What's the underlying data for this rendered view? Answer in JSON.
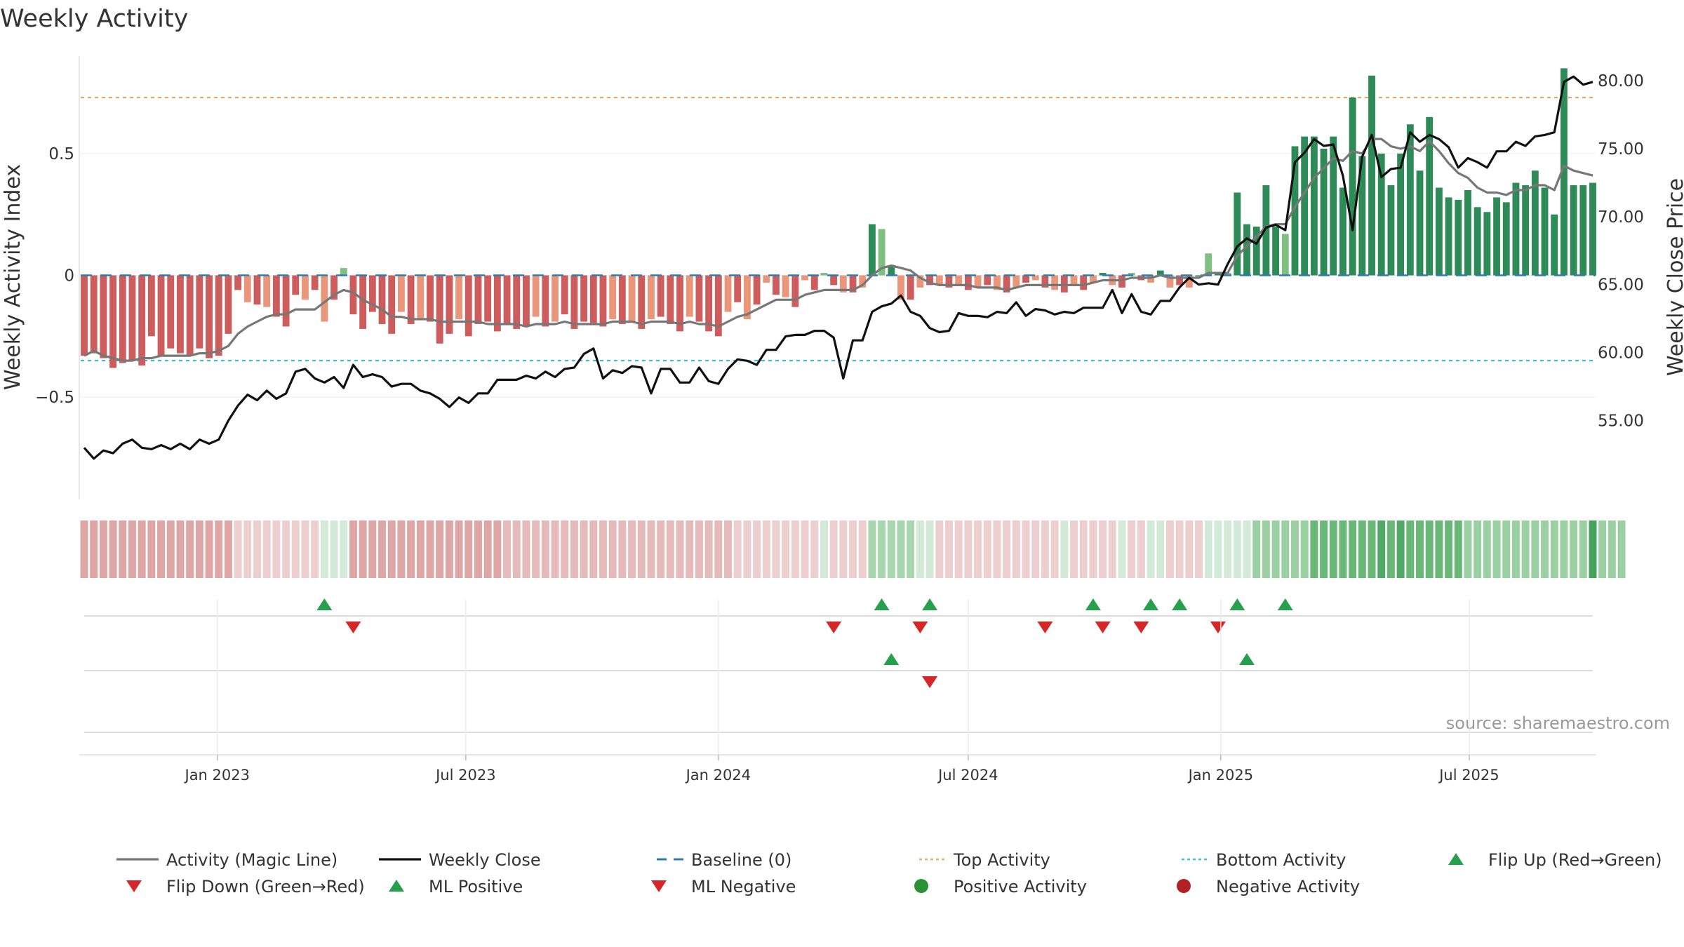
{
  "chart_data": {
    "type": "bar",
    "title": "Weekly Activity",
    "ylabel_left": "Weekly Activity Index",
    "ylabel_right": "Weekly Close Price",
    "source": "source: sharemaestro.com",
    "x_start_week": "2022-09-26",
    "x_ticks": [
      {
        "label": "Jan 2023",
        "date": "2023-01-01"
      },
      {
        "label": "Jul 2023",
        "date": "2023-07-01"
      },
      {
        "label": "Jan 2024",
        "date": "2024-01-01"
      },
      {
        "label": "Jul 2024",
        "date": "2024-07-01"
      },
      {
        "label": "Jan 2025",
        "date": "2025-01-01"
      },
      {
        "label": "Jul 2025",
        "date": "2025-07-01"
      }
    ],
    "y_left": {
      "ticks": [
        0.5,
        0,
        -0.5
      ],
      "tick_labels": [
        "0.5",
        "0",
        "−0.5"
      ],
      "range": [
        -0.92,
        0.9
      ]
    },
    "y_right": {
      "ticks": [
        80,
        75,
        70,
        65,
        60,
        55
      ],
      "tick_labels": [
        "80.00",
        "75.00",
        "70.00",
        "65.00",
        "60.00",
        "55.00"
      ],
      "range": [
        49.2,
        81.8
      ]
    },
    "thresholds": {
      "top": 0.73,
      "bottom": -0.35,
      "baseline": 0
    },
    "activity": [
      -0.33,
      -0.32,
      -0.34,
      -0.38,
      -0.36,
      -0.35,
      -0.37,
      -0.25,
      -0.33,
      -0.3,
      -0.32,
      -0.33,
      -0.3,
      -0.34,
      -0.33,
      -0.24,
      -0.06,
      -0.11,
      -0.12,
      -0.13,
      -0.17,
      -0.21,
      -0.08,
      -0.1,
      -0.06,
      -0.19,
      -0.1,
      0.03,
      -0.16,
      -0.22,
      -0.15,
      -0.2,
      -0.24,
      -0.15,
      -0.2,
      -0.18,
      -0.19,
      -0.28,
      -0.24,
      -0.18,
      -0.25,
      -0.2,
      -0.19,
      -0.23,
      -0.2,
      -0.22,
      -0.21,
      -0.17,
      -0.21,
      -0.19,
      -0.16,
      -0.22,
      -0.19,
      -0.2,
      -0.21,
      -0.18,
      -0.2,
      -0.19,
      -0.22,
      -0.18,
      -0.17,
      -0.2,
      -0.23,
      -0.17,
      -0.19,
      -0.23,
      -0.25,
      -0.15,
      -0.11,
      -0.18,
      -0.12,
      -0.03,
      -0.08,
      -0.09,
      -0.13,
      -0.02,
      -0.06,
      0.01,
      -0.04,
      -0.07,
      -0.07,
      -0.05,
      0.21,
      0.19,
      0.04,
      -0.1,
      -0.1,
      -0.05,
      -0.04,
      -0.04,
      -0.05,
      -0.04,
      -0.06,
      -0.05,
      -0.04,
      -0.06,
      -0.07,
      -0.05,
      -0.03,
      -0.02,
      -0.05,
      -0.06,
      -0.07,
      -0.04,
      -0.06,
      -0.03,
      0.01,
      -0.04,
      -0.05,
      0.01,
      -0.02,
      -0.03,
      0.02,
      -0.05,
      -0.04,
      -0.05,
      0.0,
      0.09,
      0.01,
      0.01,
      0.34,
      0.21,
      0.2,
      0.37,
      0.2,
      0.17,
      0.53,
      0.57,
      0.57,
      0.52,
      0.57,
      0.36,
      0.73,
      0.49,
      0.82,
      0.5,
      0.37,
      0.5,
      0.62,
      0.43,
      0.65,
      0.36,
      0.32,
      0.31,
      0.35,
      0.28,
      0.26,
      0.32,
      0.3,
      0.38,
      0.37,
      0.43,
      0.36,
      0.25,
      0.85,
      0.37,
      0.37,
      0.38
    ],
    "magic_line": [
      -0.33,
      -0.31,
      -0.33,
      -0.34,
      -0.35,
      -0.35,
      -0.34,
      -0.34,
      -0.33,
      -0.33,
      -0.33,
      -0.33,
      -0.32,
      -0.32,
      -0.31,
      -0.29,
      -0.24,
      -0.21,
      -0.19,
      -0.17,
      -0.16,
      -0.16,
      -0.14,
      -0.14,
      -0.14,
      -0.11,
      -0.08,
      -0.06,
      -0.07,
      -0.1,
      -0.12,
      -0.14,
      -0.17,
      -0.17,
      -0.18,
      -0.18,
      -0.18,
      -0.19,
      -0.19,
      -0.19,
      -0.19,
      -0.19,
      -0.2,
      -0.2,
      -0.2,
      -0.2,
      -0.21,
      -0.2,
      -0.2,
      -0.2,
      -0.19,
      -0.2,
      -0.2,
      -0.2,
      -0.2,
      -0.19,
      -0.19,
      -0.19,
      -0.2,
      -0.19,
      -0.19,
      -0.19,
      -0.2,
      -0.19,
      -0.2,
      -0.2,
      -0.21,
      -0.19,
      -0.17,
      -0.16,
      -0.14,
      -0.12,
      -0.1,
      -0.1,
      -0.1,
      -0.08,
      -0.07,
      -0.06,
      -0.06,
      -0.06,
      -0.06,
      -0.04,
      0.0,
      0.03,
      0.04,
      0.03,
      0.02,
      -0.01,
      -0.03,
      -0.04,
      -0.04,
      -0.04,
      -0.04,
      -0.05,
      -0.05,
      -0.05,
      -0.06,
      -0.05,
      -0.04,
      -0.04,
      -0.04,
      -0.04,
      -0.04,
      -0.04,
      -0.04,
      -0.03,
      -0.02,
      -0.02,
      -0.02,
      -0.01,
      -0.01,
      -0.01,
      0.0,
      -0.01,
      -0.01,
      -0.01,
      -0.01,
      0.01,
      0.01,
      0.01,
      0.08,
      0.12,
      0.16,
      0.2,
      0.21,
      0.21,
      0.28,
      0.34,
      0.4,
      0.44,
      0.48,
      0.47,
      0.51,
      0.5,
      0.56,
      0.56,
      0.53,
      0.52,
      0.53,
      0.51,
      0.55,
      0.51,
      0.46,
      0.42,
      0.4,
      0.36,
      0.34,
      0.34,
      0.33,
      0.35,
      0.35,
      0.37,
      0.37,
      0.35,
      0.45,
      0.43,
      0.42,
      0.41
    ],
    "close": [
      53.0,
      52.2,
      52.8,
      52.6,
      53.3,
      53.6,
      53.0,
      52.9,
      53.2,
      52.9,
      53.3,
      52.9,
      53.6,
      53.3,
      53.6,
      55.0,
      56.1,
      56.9,
      56.5,
      57.2,
      56.6,
      57.0,
      58.6,
      58.8,
      58.1,
      57.8,
      58.2,
      57.4,
      59.1,
      58.2,
      58.4,
      58.2,
      57.5,
      57.7,
      57.7,
      57.2,
      57.0,
      56.6,
      56.0,
      56.7,
      56.3,
      57.0,
      57.0,
      58.0,
      58.0,
      58.0,
      58.3,
      58.1,
      58.6,
      58.2,
      58.8,
      58.9,
      59.9,
      60.3,
      58.1,
      58.7,
      58.5,
      59.0,
      58.9,
      57.0,
      58.8,
      58.8,
      57.8,
      57.8,
      58.9,
      57.9,
      57.7,
      58.8,
      59.5,
      59.4,
      59.1,
      60.2,
      60.2,
      61.2,
      61.3,
      61.3,
      61.6,
      61.6,
      61.1,
      58.1,
      60.9,
      60.9,
      63.0,
      63.4,
      63.6,
      64.2,
      63.0,
      62.7,
      61.8,
      61.5,
      61.6,
      62.9,
      62.7,
      62.7,
      62.6,
      63.0,
      62.9,
      63.7,
      62.7,
      63.2,
      63.1,
      62.8,
      63.0,
      62.9,
      63.3,
      63.3,
      63.3,
      64.6,
      62.9,
      64.3,
      63.0,
      62.8,
      63.8,
      63.8,
      64.8,
      65.5,
      65.0,
      65.1,
      65.0,
      66.5,
      67.8,
      68.4,
      68.0,
      69.2,
      69.4,
      69.0,
      74.0,
      74.7,
      75.7,
      75.2,
      75.3,
      73.0,
      69.0,
      74.4,
      76.0,
      72.9,
      73.5,
      73.6,
      76.2,
      75.5,
      76.0,
      75.7,
      75.1,
      73.6,
      74.3,
      74.0,
      73.6,
      74.8,
      74.8,
      75.5,
      75.2,
      75.9,
      76.0,
      76.2,
      79.9,
      80.3,
      79.7,
      79.9
    ],
    "heat_strip_colors": [
      "#dea6a4",
      "#dea6a4",
      "#dea6a4",
      "#dea6a4",
      "#dea6a4",
      "#dea6a4",
      "#dea6a4",
      "#dea6a4",
      "#dea6a4",
      "#dea6a4",
      "#dea6a4",
      "#dea6a4",
      "#dea6a4",
      "#dea6a4",
      "#dea6a4",
      "#dea6a4",
      "#eecfcf",
      "#eecfcf",
      "#eecfcf",
      "#eecfcf",
      "#eecfcf",
      "#eecfcf",
      "#eecfcf",
      "#eecfcf",
      "#eecfcf",
      "#d4ead8",
      "#d4ead8",
      "#d4ead8",
      "#dea6a4",
      "#dea6a4",
      "#dea6a4",
      "#dea6a4",
      "#dea6a4",
      "#dea6a4",
      "#dea6a4",
      "#dea6a4",
      "#dea6a4",
      "#dea6a4",
      "#dea6a4",
      "#dea6a4",
      "#dea6a4",
      "#dea6a4",
      "#dea6a4",
      "#dea6a4",
      "#e6baba",
      "#e6baba",
      "#e6baba",
      "#e6baba",
      "#e6baba",
      "#e6baba",
      "#e6baba",
      "#e6baba",
      "#e6baba",
      "#e6baba",
      "#e6baba",
      "#e6baba",
      "#e6baba",
      "#e6baba",
      "#e6baba",
      "#e6baba",
      "#e6baba",
      "#e6baba",
      "#e6baba",
      "#e6baba",
      "#e6baba",
      "#e6baba",
      "#e6baba",
      "#e6baba",
      "#eecfcf",
      "#eecfcf",
      "#eecfcf",
      "#eecfcf",
      "#eecfcf",
      "#eecfcf",
      "#eecfcf",
      "#eecfcf",
      "#eecfcf",
      "#d4ead8",
      "#eecfcf",
      "#eecfcf",
      "#eecfcf",
      "#eecfcf",
      "#a8d6ae",
      "#a8d6ae",
      "#a8d6ae",
      "#a8d6ae",
      "#a8d6ae",
      "#d4ead8",
      "#d4ead8",
      "#eecfcf",
      "#eecfcf",
      "#eecfcf",
      "#eecfcf",
      "#eecfcf",
      "#eecfcf",
      "#eecfcf",
      "#eecfcf",
      "#eecfcf",
      "#eecfcf",
      "#eecfcf",
      "#eecfcf",
      "#eecfcf",
      "#d4ead8",
      "#eecfcf",
      "#eecfcf",
      "#eecfcf",
      "#eecfcf",
      "#eecfcf",
      "#d4ead8",
      "#eecfcf",
      "#eecfcf",
      "#d4ead8",
      "#d4ead8",
      "#eecfcf",
      "#eecfcf",
      "#eecfcf",
      "#eecfcf",
      "#d4ead8",
      "#d4ead8",
      "#d4ead8",
      "#d4ead8",
      "#d4ead8",
      "#9bd0a2",
      "#9bd0a2",
      "#9bd0a2",
      "#9bd0a2",
      "#9bd0a2",
      "#9bd0a2",
      "#6ab878",
      "#6ab878",
      "#6ab878",
      "#6ab878",
      "#6ab878",
      "#6ab878",
      "#6ab878",
      "#52a866",
      "#6ab878",
      "#52a866",
      "#6ab878",
      "#6ab878",
      "#6ab878",
      "#6ab878",
      "#6ab878",
      "#6ab878",
      "#9bd0a2",
      "#9bd0a2",
      "#9bd0a2",
      "#9bd0a2",
      "#9bd0a2",
      "#9bd0a2",
      "#9bd0a2",
      "#9bd0a2",
      "#9bd0a2",
      "#9bd0a2",
      "#9bd0a2",
      "#9bd0a2",
      "#9bd0a2",
      "#44a35a",
      "#9bd0a2",
      "#9bd0a2",
      "#9bd0a2"
    ],
    "flip_up_weeks": [
      25,
      83,
      88,
      105,
      111,
      114,
      120,
      125
    ],
    "flip_down_weeks": [
      28,
      78,
      87,
      100,
      106,
      110,
      118
    ],
    "ml_positive_weeks": [
      84,
      121
    ],
    "ml_negative_weeks": [
      88
    ],
    "legend": [
      {
        "label": "Activity (Magic Line)",
        "marker": "line",
        "color": "#777777"
      },
      {
        "label": "Weekly Close",
        "marker": "line",
        "color": "#111111"
      },
      {
        "label": "Baseline (0)",
        "marker": "dash",
        "color": "#2e7bb6"
      },
      {
        "label": "Top Activity",
        "marker": "dot",
        "color": "#e0a96e"
      },
      {
        "label": "Bottom Activity",
        "marker": "dot",
        "color": "#3bbfd6"
      },
      {
        "label": "Flip Up (Red→Green)",
        "marker": "up",
        "color": "#27a04d"
      },
      {
        "label": "Flip Down (Green→Red)",
        "marker": "down",
        "color": "#d62728"
      },
      {
        "label": "ML Positive",
        "marker": "up",
        "color": "#27a04d"
      },
      {
        "label": "ML Negative",
        "marker": "down",
        "color": "#d62728"
      },
      {
        "label": "Positive Activity",
        "marker": "circle",
        "color": "#2a9234"
      },
      {
        "label": "Negative Activity",
        "marker": "circle",
        "color": "#b22222"
      }
    ],
    "colors": {
      "pos_strong": "#2e8b57",
      "pos_light": "#7fbf7f",
      "neg_strong": "#cd5c5c",
      "neg_light": "#e9967a",
      "magic_line": "#777777",
      "close_line": "#111111",
      "top_line": "#e0a96e",
      "bottom_line": "#3bbfd6",
      "baseline": "#2e7bb6"
    }
  }
}
